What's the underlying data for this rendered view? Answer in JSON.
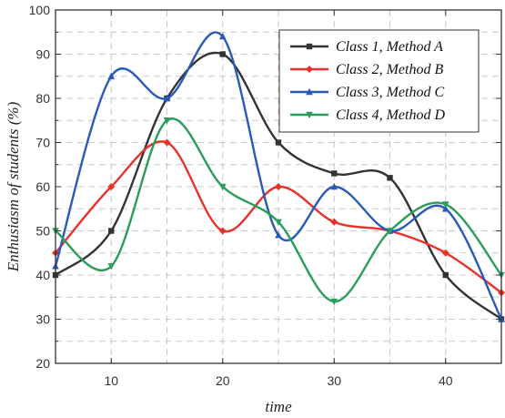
{
  "chart_data": {
    "type": "line",
    "title": "",
    "xlabel": "time",
    "ylabel": "Enthusiasm of students (%)",
    "xlim": [
      5,
      45
    ],
    "ylim": [
      20,
      100
    ],
    "x_ticks": [
      10,
      20,
      30,
      40
    ],
    "y_ticks": [
      20,
      30,
      40,
      50,
      60,
      70,
      80,
      90,
      100
    ],
    "grid": true,
    "legend_position": "top-right",
    "x": [
      5,
      10,
      15,
      20,
      25,
      30,
      35,
      40,
      45
    ],
    "series": [
      {
        "name": "Class 1, Method A",
        "color": "#333333",
        "marker": "square",
        "values": [
          40,
          50,
          80,
          90,
          70,
          63,
          62,
          40,
          30
        ]
      },
      {
        "name": "Class 2, Method B",
        "color": "#e8312a",
        "marker": "diamond",
        "values": [
          45,
          60,
          70,
          50,
          60,
          52,
          50,
          45,
          36
        ]
      },
      {
        "name": "Class 3, Method C",
        "color": "#2a5ab8",
        "marker": "triangle",
        "values": [
          42,
          85,
          80,
          94,
          49,
          60,
          50,
          55,
          30
        ]
      },
      {
        "name": "Class 4, Method D",
        "color": "#2a9d5c",
        "marker": "triangle-down",
        "values": [
          50,
          42,
          75,
          60,
          52,
          34,
          50,
          56,
          40
        ]
      }
    ]
  }
}
